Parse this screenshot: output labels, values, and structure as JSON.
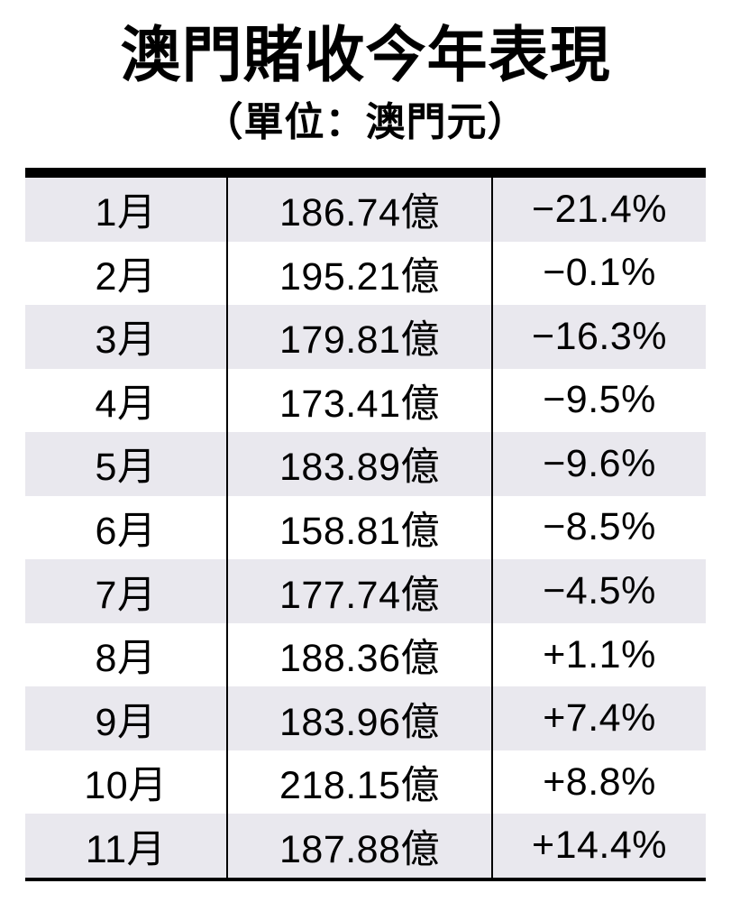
{
  "title": "澳門賭收今年表現",
  "subtitle": "（單位：澳門元）",
  "colors": {
    "row_shade": "#e9e8ee",
    "border": "#000000",
    "text": "#000000",
    "background": "#ffffff"
  },
  "chart_data": {
    "type": "table",
    "title": "澳門賭收今年表現",
    "unit_note": "（單位：澳門元）",
    "columns": [
      "month",
      "revenue",
      "yoy_change"
    ],
    "rows": [
      {
        "month": "1月",
        "revenue": "186.74億",
        "revenue_value": 186.74,
        "change": "−21.4%",
        "change_value": -21.4
      },
      {
        "month": "2月",
        "revenue": "195.21億",
        "revenue_value": 195.21,
        "change": "−0.1%",
        "change_value": -0.1
      },
      {
        "month": "3月",
        "revenue": "179.81億",
        "revenue_value": 179.81,
        "change": "−16.3%",
        "change_value": -16.3
      },
      {
        "month": "4月",
        "revenue": "173.41億",
        "revenue_value": 173.41,
        "change": "−9.5%",
        "change_value": -9.5
      },
      {
        "month": "5月",
        "revenue": "183.89億",
        "revenue_value": 183.89,
        "change": "−9.6%",
        "change_value": -9.6
      },
      {
        "month": "6月",
        "revenue": "158.81億",
        "revenue_value": 158.81,
        "change": "−8.5%",
        "change_value": -8.5
      },
      {
        "month": "7月",
        "revenue": "177.74億",
        "revenue_value": 177.74,
        "change": "−4.5%",
        "change_value": -4.5
      },
      {
        "month": "8月",
        "revenue": "188.36億",
        "revenue_value": 188.36,
        "change": "+1.1%",
        "change_value": 1.1
      },
      {
        "month": "9月",
        "revenue": "183.96億",
        "revenue_value": 183.96,
        "change": "+7.4%",
        "change_value": 7.4
      },
      {
        "month": "10月",
        "revenue": "218.15億",
        "revenue_value": 218.15,
        "change": "+8.8%",
        "change_value": 8.8
      },
      {
        "month": "11月",
        "revenue": "187.88億",
        "revenue_value": 187.88,
        "change": "+14.4%",
        "change_value": 14.4
      }
    ]
  }
}
